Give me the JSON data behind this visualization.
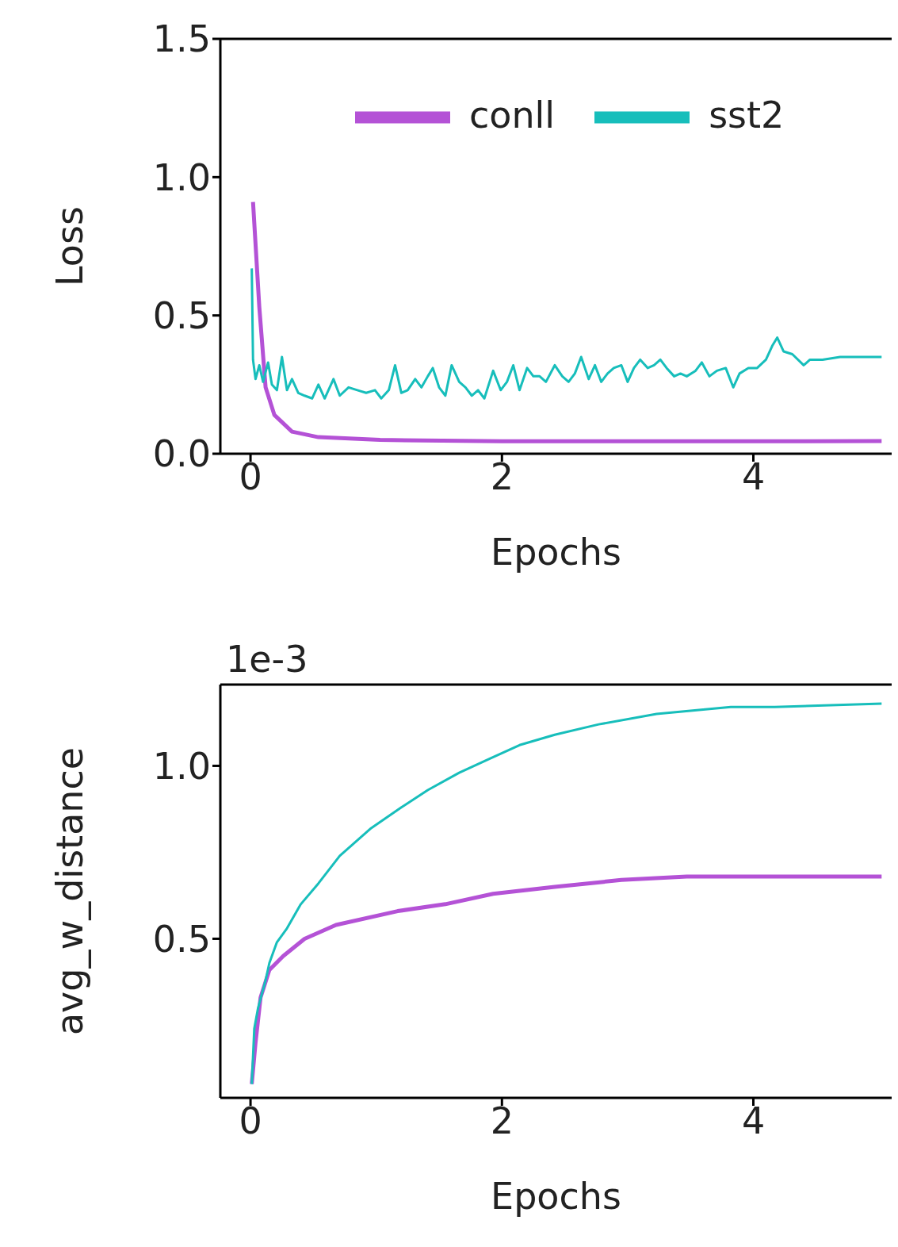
{
  "chart_data": [
    {
      "type": "line",
      "xlabel": "Epochs",
      "ylabel": "Loss",
      "xlim": [
        -0.24,
        5.1
      ],
      "xticks": [
        0,
        2,
        4
      ],
      "ylim": [
        0,
        1.5
      ],
      "yticks": [
        {
          "value": 0,
          "label": "0.0"
        },
        {
          "value": 0.5,
          "label": "0.5"
        },
        {
          "value": 1,
          "label": "1.0"
        },
        {
          "value": 1.5,
          "label": "1.5"
        }
      ],
      "legend": "top",
      "series": [
        {
          "name": "conll",
          "color": "#b452d6",
          "x": [
            0.02,
            0.07,
            0.12,
            0.19,
            0.33,
            0.54,
            1.03,
            2,
            3,
            4,
            5.02
          ],
          "values": [
            0.91,
            0.53,
            0.24,
            0.14,
            0.08,
            0.06,
            0.05,
            0.045,
            0.045,
            0.045,
            0.046
          ]
        },
        {
          "name": "sst2",
          "color": "#17bebb",
          "x": [
            0.01,
            0.02,
            0.04,
            0.07,
            0.1,
            0.14,
            0.17,
            0.21,
            0.25,
            0.29,
            0.33,
            0.38,
            0.43,
            0.49,
            0.54,
            0.59,
            0.66,
            0.71,
            0.78,
            0.85,
            0.92,
            0.99,
            1.04,
            1.1,
            1.15,
            1.2,
            1.25,
            1.31,
            1.36,
            1.41,
            1.45,
            1.5,
            1.55,
            1.6,
            1.66,
            1.71,
            1.76,
            1.81,
            1.86,
            1.93,
            1.99,
            2.04,
            2.09,
            2.14,
            2.2,
            2.25,
            2.3,
            2.35,
            2.42,
            2.48,
            2.53,
            2.58,
            2.63,
            2.69,
            2.74,
            2.79,
            2.84,
            2.89,
            2.95,
            3,
            3.05,
            3.1,
            3.16,
            3.21,
            3.26,
            3.31,
            3.37,
            3.42,
            3.47,
            3.54,
            3.59,
            3.65,
            3.71,
            3.78,
            3.84,
            3.89,
            3.96,
            4.03,
            4.1,
            4.15,
            4.19,
            4.24,
            4.31,
            4.4,
            4.45,
            4.55,
            4.69,
            4.87,
            5.02
          ],
          "values": [
            0.67,
            0.34,
            0.27,
            0.32,
            0.26,
            0.33,
            0.25,
            0.23,
            0.35,
            0.23,
            0.27,
            0.22,
            0.21,
            0.2,
            0.25,
            0.2,
            0.27,
            0.21,
            0.24,
            0.23,
            0.22,
            0.23,
            0.2,
            0.23,
            0.32,
            0.22,
            0.23,
            0.27,
            0.24,
            0.28,
            0.31,
            0.24,
            0.21,
            0.32,
            0.26,
            0.24,
            0.21,
            0.23,
            0.2,
            0.3,
            0.23,
            0.26,
            0.32,
            0.23,
            0.31,
            0.28,
            0.28,
            0.26,
            0.32,
            0.28,
            0.26,
            0.29,
            0.35,
            0.27,
            0.32,
            0.26,
            0.29,
            0.31,
            0.32,
            0.26,
            0.31,
            0.34,
            0.31,
            0.32,
            0.34,
            0.31,
            0.28,
            0.29,
            0.28,
            0.3,
            0.33,
            0.28,
            0.3,
            0.31,
            0.24,
            0.29,
            0.31,
            0.31,
            0.34,
            0.39,
            0.42,
            0.37,
            0.36,
            0.32,
            0.34,
            0.34,
            0.35,
            0.35,
            0.35
          ]
        }
      ]
    },
    {
      "type": "line",
      "xlabel": "Epochs",
      "ylabel": "avg_w_distance",
      "annotations": [
        "1e-3"
      ],
      "xlim": [
        -0.24,
        5.1
      ],
      "xticks": [
        0,
        2,
        4
      ],
      "ylim": [
        0.04,
        1.235
      ],
      "yticks": [
        {
          "value": 0.5,
          "label": "0.5"
        },
        {
          "value": 1,
          "label": "1.0"
        }
      ],
      "series": [
        {
          "color": "#b452d6",
          "x": [
            0.01,
            0.04,
            0.08,
            0.15,
            0.26,
            0.43,
            0.68,
            1.17,
            1.55,
            1.93,
            2.42,
            2.95,
            3.47,
            4.17,
            5.02
          ],
          "values": [
            0.08,
            0.2,
            0.33,
            0.41,
            0.45,
            0.5,
            0.54,
            0.58,
            0.6,
            0.63,
            0.65,
            0.67,
            0.68,
            0.68,
            0.68
          ]
        },
        {
          "color": "#17bebb",
          "x": [
            0.01,
            0.03,
            0.06,
            0.12,
            0.15,
            0.21,
            0.29,
            0.4,
            0.54,
            0.71,
            0.96,
            1.2,
            1.41,
            1.66,
            1.9,
            2.14,
            2.42,
            2.77,
            3.23,
            3.82,
            4.17,
            5.02
          ],
          "values": [
            0.08,
            0.24,
            0.3,
            0.38,
            0.43,
            0.49,
            0.53,
            0.6,
            0.66,
            0.74,
            0.82,
            0.88,
            0.93,
            0.98,
            1.02,
            1.06,
            1.09,
            1.12,
            1.15,
            1.17,
            1.17,
            1.18
          ]
        }
      ]
    }
  ]
}
